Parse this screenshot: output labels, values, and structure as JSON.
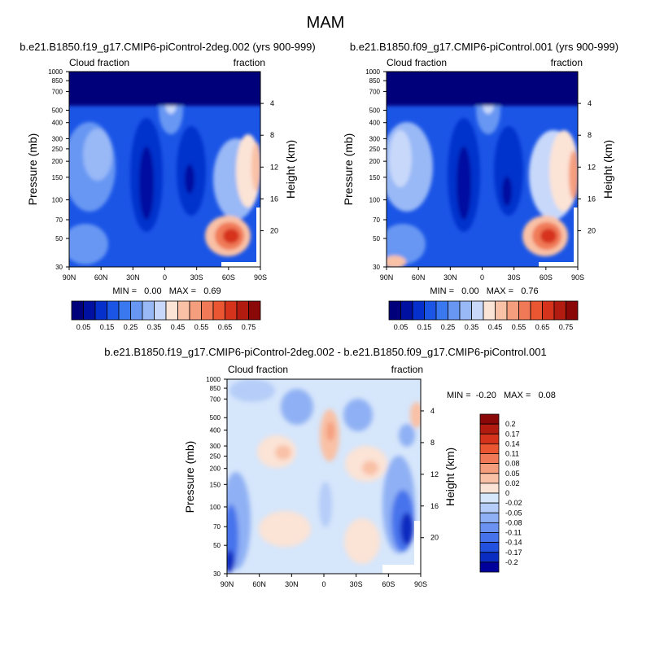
{
  "figure": {
    "title": "MAM"
  },
  "colors": {
    "frame": "#000000",
    "diverging_background": "#d6e6fb"
  },
  "chart_data": [
    {
      "type": "heatmap",
      "panel": "top-left",
      "title": "b.e21.B1850.f19_g17.CMIP6-piControl-2deg.002 (yrs 900-999)",
      "subtitle_left": "Cloud fraction",
      "subtitle_right": "fraction",
      "xlabel": "",
      "ylabel": "Pressure (mb)",
      "ylabel_right": "Height (km)",
      "x_ticks": [
        "90N",
        "60N",
        "30N",
        "0",
        "30S",
        "60S",
        "90S"
      ],
      "x_tick_values": [
        90,
        60,
        30,
        0,
        -30,
        -60,
        -90
      ],
      "xlim": [
        90,
        -90
      ],
      "y_ticks": [
        "30",
        "50",
        "70",
        "100",
        "150",
        "200",
        "250",
        "300",
        "400",
        "500",
        "700",
        "850",
        "1000"
      ],
      "y_tick_values": [
        30,
        50,
        70,
        100,
        150,
        200,
        250,
        300,
        400,
        500,
        700,
        850,
        1000
      ],
      "ylim": [
        1000,
        30
      ],
      "y_scale": "log",
      "height_ticks": [
        "20",
        "16",
        "12",
        "8",
        "4"
      ],
      "height_tick_values": [
        20,
        16,
        12,
        8,
        4
      ],
      "stats_text": "MIN =   0.00   MAX =   0.69",
      "colorbar": {
        "orientation": "horizontal",
        "labels": [
          "0.05",
          "0.15",
          "0.25",
          "0.35",
          "0.45",
          "0.55",
          "0.65",
          "0.75"
        ],
        "colors": [
          "#00007a",
          "#0010a0",
          "#0630cc",
          "#1b55e6",
          "#3a78f0",
          "#6897f3",
          "#98b8f6",
          "#c7d8fa",
          "#fbe3d6",
          "#f9c1a6",
          "#f59e7e",
          "#f07a58",
          "#ea5532",
          "#d6331c",
          "#b21b10",
          "#8a0808"
        ]
      }
    },
    {
      "type": "heatmap",
      "panel": "top-right",
      "title": "b.e21.B1850.f09_g17.CMIP6-piControl.001 (yrs 900-999)",
      "subtitle_left": "Cloud fraction",
      "subtitle_right": "fraction",
      "xlabel": "",
      "ylabel": "Pressure (mb)",
      "ylabel_right": "Height (km)",
      "x_ticks": [
        "90N",
        "60N",
        "30N",
        "0",
        "30S",
        "60S",
        "90S"
      ],
      "x_tick_values": [
        90,
        60,
        30,
        0,
        -30,
        -60,
        -90
      ],
      "xlim": [
        90,
        -90
      ],
      "y_ticks": [
        "30",
        "50",
        "70",
        "100",
        "150",
        "200",
        "250",
        "300",
        "400",
        "500",
        "700",
        "850",
        "1000"
      ],
      "y_tick_values": [
        30,
        50,
        70,
        100,
        150,
        200,
        250,
        300,
        400,
        500,
        700,
        850,
        1000
      ],
      "ylim": [
        1000,
        30
      ],
      "y_scale": "log",
      "height_ticks": [
        "20",
        "16",
        "12",
        "8",
        "4"
      ],
      "height_tick_values": [
        20,
        16,
        12,
        8,
        4
      ],
      "stats_text": "MIN =   0.00   MAX =   0.76",
      "colorbar": {
        "orientation": "horizontal",
        "labels": [
          "0.05",
          "0.15",
          "0.25",
          "0.35",
          "0.45",
          "0.55",
          "0.65",
          "0.75"
        ],
        "colors": [
          "#00007a",
          "#0010a0",
          "#0630cc",
          "#1b55e6",
          "#3a78f0",
          "#6897f3",
          "#98b8f6",
          "#c7d8fa",
          "#fbe3d6",
          "#f9c1a6",
          "#f59e7e",
          "#f07a58",
          "#ea5532",
          "#d6331c",
          "#b21b10",
          "#8a0808"
        ]
      }
    },
    {
      "type": "heatmap",
      "panel": "bottom",
      "title": "b.e21.B1850.f19_g17.CMIP6-piControl-2deg.002 - b.e21.B1850.f09_g17.CMIP6-piControl.001",
      "subtitle_left": "Cloud fraction",
      "subtitle_right": "fraction",
      "xlabel": "",
      "ylabel": "Pressure (mb)",
      "ylabel_right": "Height (km)",
      "x_ticks": [
        "90N",
        "60N",
        "30N",
        "0",
        "30S",
        "60S",
        "90S"
      ],
      "x_tick_values": [
        90,
        60,
        30,
        0,
        -30,
        -60,
        -90
      ],
      "xlim": [
        90,
        -90
      ],
      "y_ticks": [
        "30",
        "50",
        "70",
        "100",
        "150",
        "200",
        "250",
        "300",
        "400",
        "500",
        "700",
        "850",
        "1000"
      ],
      "y_tick_values": [
        30,
        50,
        70,
        100,
        150,
        200,
        250,
        300,
        400,
        500,
        700,
        850,
        1000
      ],
      "ylim": [
        1000,
        30
      ],
      "y_scale": "log",
      "height_ticks": [
        "20",
        "16",
        "12",
        "8",
        "4"
      ],
      "height_tick_values": [
        20,
        16,
        12,
        8,
        4
      ],
      "stats_text": "MIN =  -0.20   MAX =   0.08",
      "colorbar": {
        "orientation": "vertical",
        "labels": [
          "0.2",
          "0.17",
          "0.14",
          "0.11",
          "0.08",
          "0.05",
          "0.02",
          "0",
          "-0.02",
          "-0.05",
          "-0.08",
          "-0.11",
          "-0.14",
          "-0.17",
          "-0.2"
        ],
        "colors": [
          "#8a0808",
          "#b21b10",
          "#d6331c",
          "#ea5532",
          "#f07a58",
          "#f59e7e",
          "#f9c1a6",
          "#fbe3d6",
          "#d6e6fb",
          "#b5cdf8",
          "#8fb0f4",
          "#6b92f1",
          "#4673ec",
          "#2250df",
          "#0a2cc0",
          "#00009a"
        ]
      }
    }
  ]
}
